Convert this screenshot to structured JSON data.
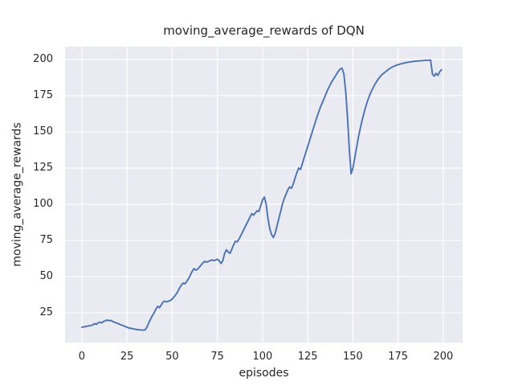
{
  "chart_data": {
    "type": "line",
    "title": "moving_average_rewards of DQN",
    "xlabel": "episodes",
    "ylabel": "moving_average_rewards",
    "legend_position": "none",
    "grid": true,
    "xticks": [
      0,
      25,
      50,
      75,
      100,
      125,
      150,
      175,
      200
    ],
    "yticks": [
      25,
      50,
      75,
      100,
      125,
      150,
      175,
      200
    ],
    "xlim": [
      -9.3,
      210.7
    ],
    "ylim": [
      4.4,
      208.9
    ],
    "line_color": "#4c72b0",
    "plot_bg_color": "#eaeaf2",
    "grid_color": "#ffffff",
    "text_color": "#262626",
    "x": [
      0,
      2,
      4,
      6,
      7,
      8,
      9,
      10,
      11,
      12,
      13,
      14,
      15,
      16,
      17,
      18,
      20,
      22,
      24,
      26,
      28,
      30,
      32,
      34,
      35,
      36,
      37,
      38,
      39,
      40,
      41,
      42,
      43,
      44,
      45,
      46,
      47,
      48,
      49,
      50,
      51,
      52,
      53,
      54,
      55,
      56,
      57,
      58,
      59,
      60,
      61,
      62,
      63,
      64,
      65,
      66,
      67,
      68,
      69,
      70,
      71,
      72,
      73,
      74,
      75,
      76,
      77,
      78,
      79,
      80,
      81,
      82,
      83,
      84,
      85,
      86,
      87,
      88,
      89,
      90,
      91,
      92,
      93,
      94,
      95,
      96,
      97,
      98,
      99,
      100,
      101,
      102,
      103,
      104,
      105,
      106,
      107,
      108,
      109,
      110,
      111,
      112,
      113,
      114,
      115,
      116,
      117,
      118,
      119,
      120,
      121,
      122,
      123,
      124,
      125,
      126,
      127,
      128,
      129,
      130,
      131,
      132,
      133,
      134,
      135,
      136,
      137,
      138,
      139,
      140,
      141,
      142,
      143,
      144,
      145,
      146,
      147,
      148,
      149,
      150,
      151,
      152,
      153,
      154,
      155,
      156,
      157,
      158,
      159,
      160,
      161,
      162,
      163,
      164,
      165,
      166,
      167,
      168,
      169,
      170,
      172,
      174,
      176,
      178,
      180,
      182,
      184,
      186,
      188,
      190,
      192,
      193,
      194,
      195,
      196,
      197,
      198,
      199
    ],
    "y": [
      15,
      15.5,
      16,
      16.5,
      17.5,
      17,
      18,
      18.5,
      18,
      19,
      19.5,
      20,
      19.5,
      19.8,
      19,
      18.5,
      17.5,
      16.5,
      15.5,
      14.5,
      14,
      13.5,
      13.2,
      13,
      13.2,
      15,
      18,
      20.5,
      23,
      25,
      27.5,
      29.5,
      28.5,
      30.5,
      32.5,
      33,
      32.5,
      33,
      33.5,
      34.5,
      36,
      37.5,
      39.5,
      42,
      44,
      45.5,
      45,
      46.5,
      48.5,
      51,
      53.5,
      55.5,
      54.5,
      55,
      56.5,
      58,
      59.5,
      60.5,
      60,
      60.5,
      61,
      61.5,
      61,
      61.5,
      62,
      61,
      59,
      61,
      66,
      68.5,
      67,
      66,
      69,
      72,
      74.5,
      74,
      76,
      78.5,
      81,
      83.5,
      86,
      88.5,
      91,
      93.5,
      92.5,
      94,
      95.5,
      95,
      99,
      103,
      105,
      100,
      90,
      83,
      79,
      77,
      80,
      85,
      90,
      95,
      100,
      104,
      107,
      110,
      112,
      111,
      114,
      118,
      122,
      125,
      124,
      128,
      132,
      136,
      140,
      144,
      148,
      152,
      156,
      160,
      163.5,
      167,
      170,
      173,
      176,
      179,
      181.5,
      184,
      186,
      188,
      190,
      192,
      193.5,
      194,
      190,
      178,
      160,
      138,
      121,
      125,
      132,
      139,
      146,
      152,
      157.5,
      162.5,
      167,
      171,
      174.5,
      177.5,
      180,
      182.5,
      184.5,
      186.5,
      188,
      189.5,
      190.5,
      191.5,
      192.5,
      193.5,
      195,
      196,
      196.8,
      197.5,
      198,
      198.4,
      198.8,
      199,
      199.2,
      199.4,
      199.5,
      199.6,
      190,
      188.5,
      190.5,
      189,
      191.5,
      193
    ]
  }
}
